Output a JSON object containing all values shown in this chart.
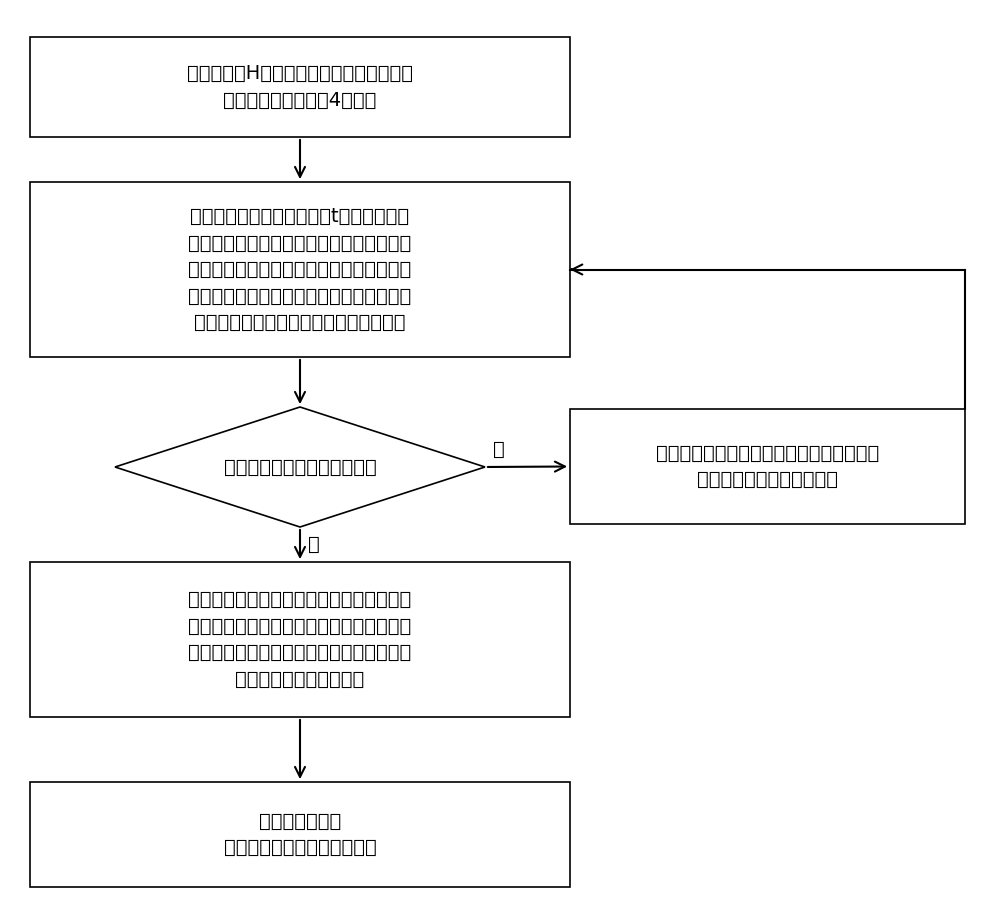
{
  "bg_color": "#ffffff",
  "box_color": "#ffffff",
  "box_edge_color": "#000000",
  "arrow_color": "#000000",
  "font_size": 14,
  "box1_text": "根据该地区H年内的照片拍摄时间，将各兴\n趣点按照季节划分为4个部分",
  "box2_text": "针对所述划分的各部分，以t小时为时间间\n隔，统计出一天内各兴趣点各时间间隔的照\n片数量，将各个时间间隔中该地区一个兴趣\n点的照片数量的和作为该兴趣点的时间序列\n；得到各个部分各兴趣点的时间序列集合",
  "diamond_text": "当前兴趣点时间序列是否平稳",
  "box3_text": "对当前兴趣点的时间序列进行差分处理，得\n到该兴趣点的新的时间序列",
  "box4_text": "根据当前兴趣点时间序列中时间间隔的照片\n数量的方差和协方差确定该兴趣点的时间序\n列的自相关系数和偏自相关系数，从而确定\n该兴趣点的时间序列模型",
  "box5_text": "重复上述步骤，\n得到各兴趣点的时间序列模型",
  "label_no": "否",
  "label_yes": "是"
}
